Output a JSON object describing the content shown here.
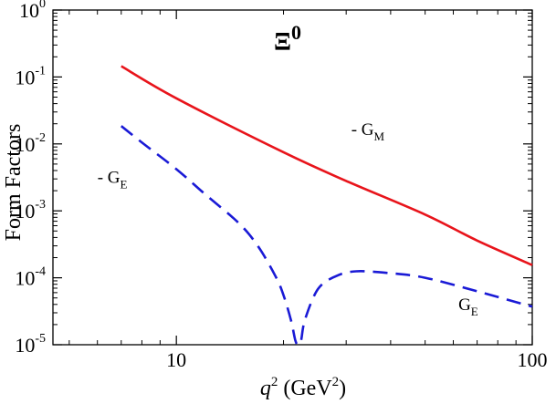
{
  "chart_data": {
    "type": "line",
    "title": "",
    "xlabel": {
      "var": "q",
      "var_exp": "2",
      "units_open": " (GeV",
      "units_exp": "2",
      "units_close": ")"
    },
    "ylabel": "Form Factors",
    "x_scale": "log",
    "y_scale": "log",
    "xlim": [
      4.5,
      100
    ],
    "ylim": [
      1e-05,
      1
    ],
    "x_ticks": [
      {
        "value": 10,
        "label": "10"
      },
      {
        "value": 100,
        "label": "100"
      }
    ],
    "y_ticks": [
      {
        "value": 1,
        "base": "10",
        "exp": "0"
      },
      {
        "value": 0.1,
        "base": "10",
        "exp": "-1"
      },
      {
        "value": 0.01,
        "base": "10",
        "exp": "-2"
      },
      {
        "value": 0.001,
        "base": "10",
        "exp": "-3"
      },
      {
        "value": 0.0001,
        "base": "10",
        "exp": "-4"
      },
      {
        "value": 1e-05,
        "base": "10",
        "exp": "-5"
      }
    ],
    "particle_label": {
      "symbol": "Ξ",
      "superscript": "0"
    },
    "series": [
      {
        "color": "#e8141b",
        "dash": "solid",
        "points": [
          [
            7,
            0.145
          ],
          [
            10,
            0.048
          ],
          [
            20,
            0.0075
          ],
          [
            30,
            0.0028
          ],
          [
            50,
            0.00088
          ],
          [
            70,
            0.00036
          ],
          [
            100,
            0.000155
          ]
        ]
      },
      {
        "color": "#1a1ad6",
        "dash": "dashed",
        "points": [
          [
            7,
            0.0185
          ],
          [
            8,
            0.0105
          ],
          [
            10,
            0.0042
          ],
          [
            12,
            0.0018
          ],
          [
            15,
            0.00065
          ],
          [
            17,
            0.00029
          ],
          [
            19,
            0.000105
          ],
          [
            20,
            5.5e-05
          ],
          [
            21,
            2.3e-05
          ],
          [
            21.6,
            1.15e-05
          ],
          [
            22,
            7e-06
          ],
          [
            22.4,
            1.15e-05
          ],
          [
            23,
            2.4e-05
          ],
          [
            25,
            6.8e-05
          ],
          [
            28,
            0.000105
          ],
          [
            32,
            0.000125
          ],
          [
            40,
            0.000117
          ],
          [
            50,
            0.0001
          ],
          [
            70,
            6.3e-05
          ],
          [
            100,
            3.7e-05
          ]
        ]
      }
    ],
    "annotations": [
      {
        "prefix": "- ",
        "main": "G",
        "sub": "M",
        "x": 31,
        "y": 0.0135
      },
      {
        "prefix": "- ",
        "main": "G",
        "sub": "E",
        "x": 6.0,
        "y": 0.0026
      },
      {
        "prefix": "",
        "main": "G",
        "sub": "E",
        "x": 62,
        "y": 3.3e-05
      }
    ]
  }
}
